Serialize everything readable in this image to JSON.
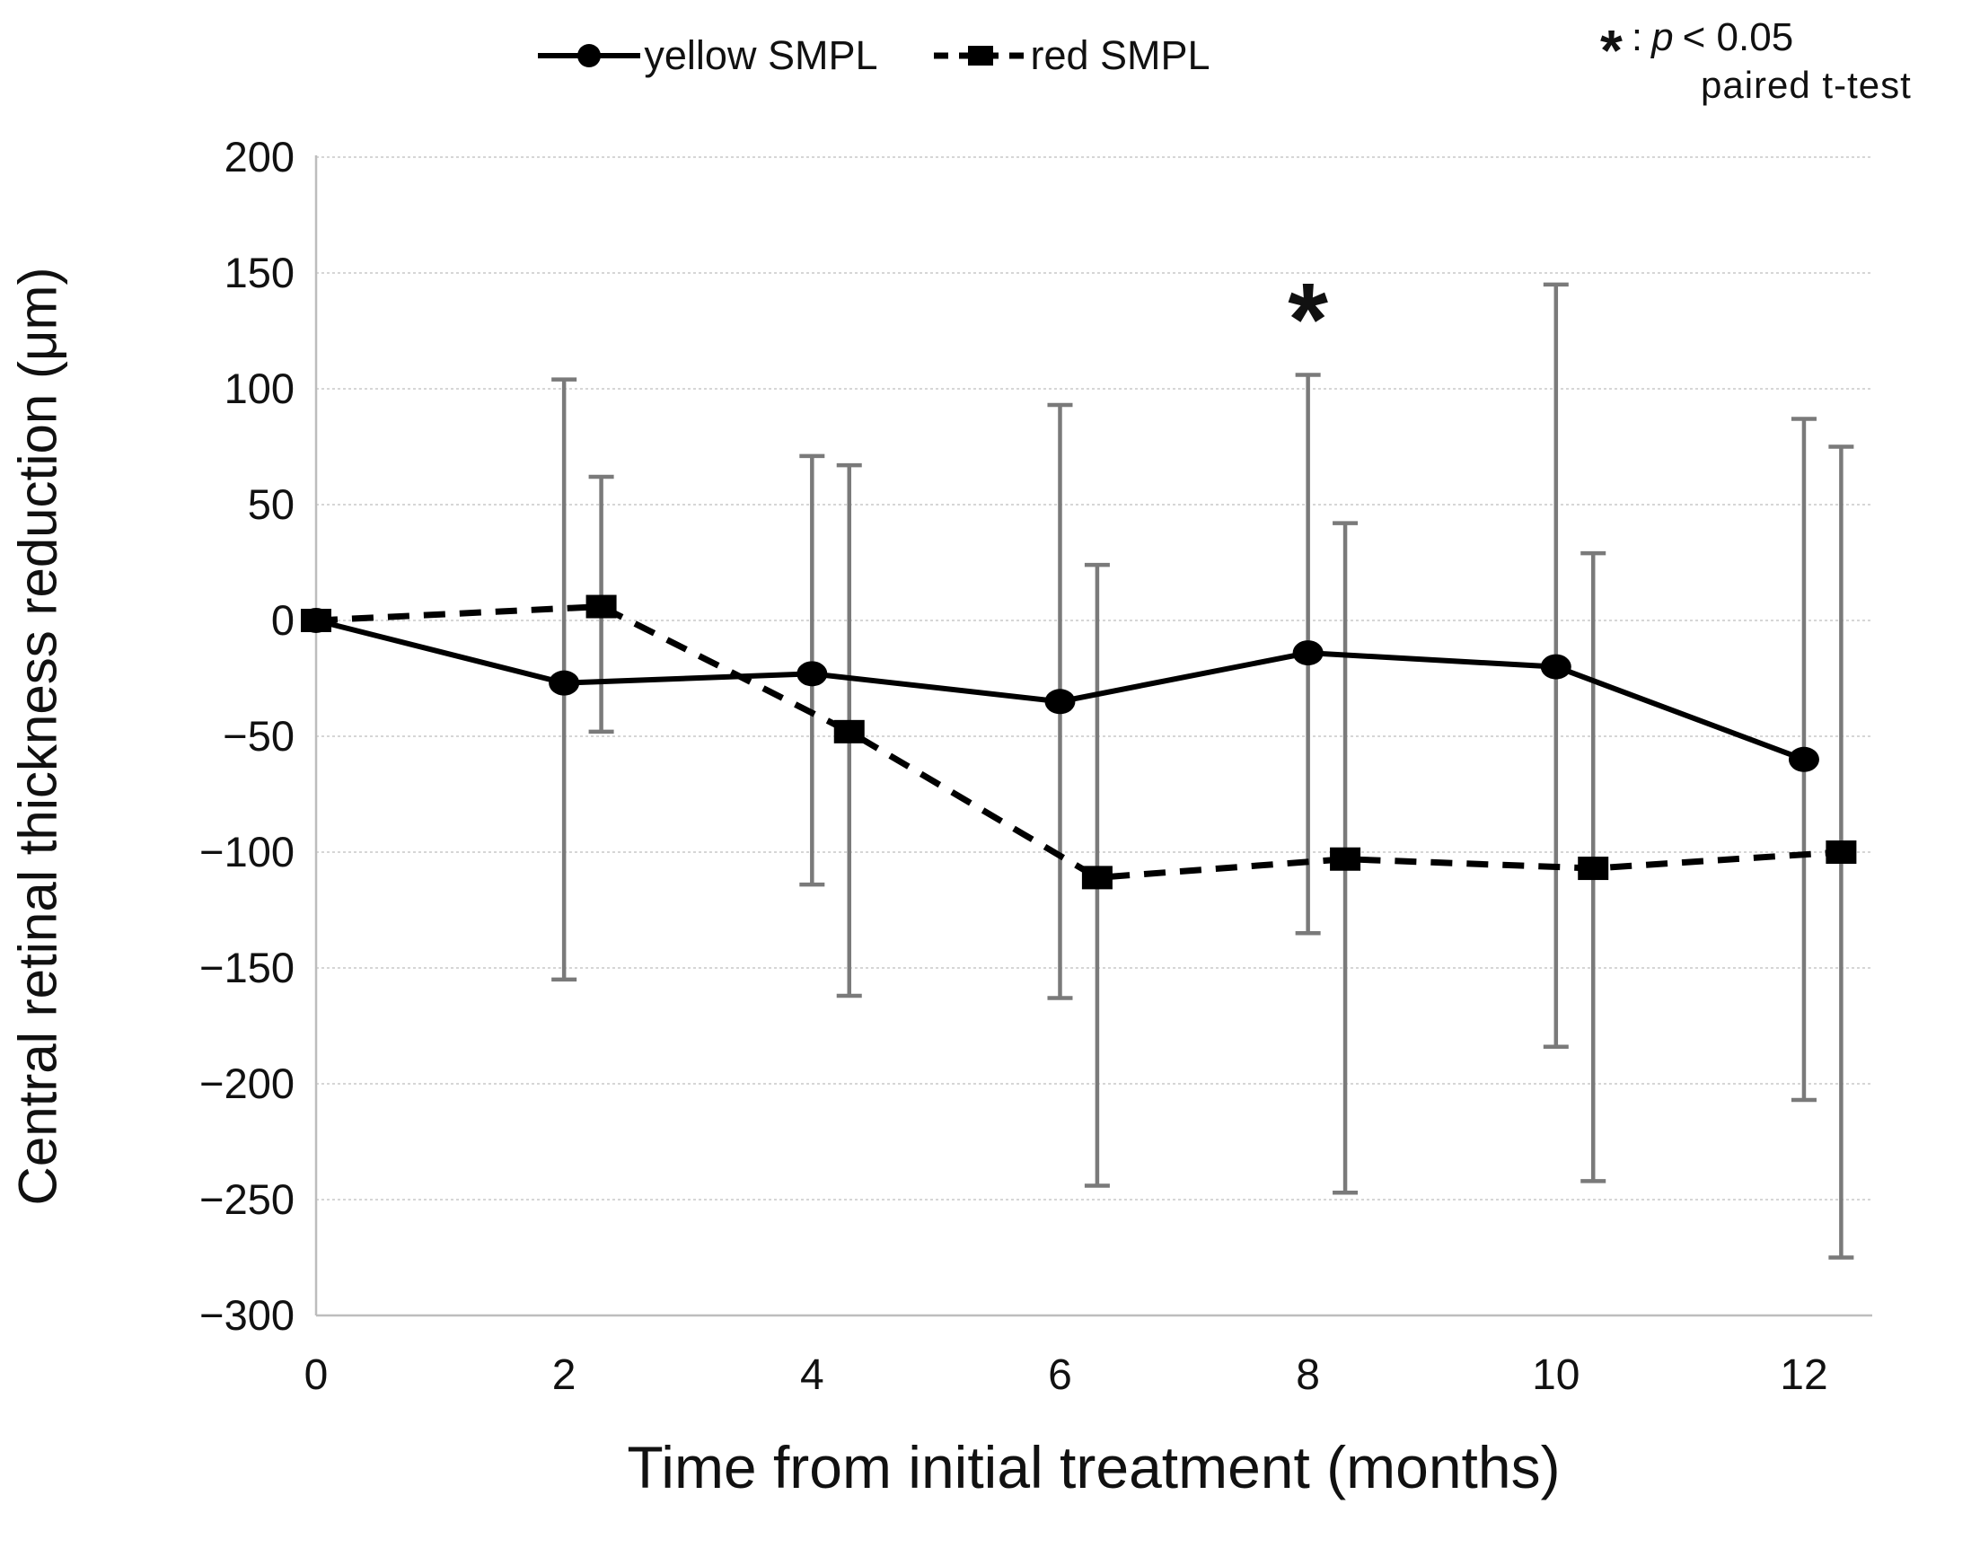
{
  "chart_data": {
    "type": "line",
    "title": "",
    "xlabel": "Time from initial treatment (months)",
    "ylabel": "Central retinal thickness reduction (μm)",
    "x_ticks": [
      0,
      2,
      4,
      6,
      8,
      10,
      12
    ],
    "y_ticks": [
      200,
      150,
      100,
      50,
      0,
      -50,
      -100,
      -150,
      -200,
      -250,
      -300
    ],
    "ylim": [
      -300,
      200
    ],
    "xlim": [
      0,
      12.55
    ],
    "grid": "horizontal-only",
    "legend_position": "top-center",
    "error_bar_color": "#7a7a7a",
    "line_color": "#000000",
    "series": [
      {
        "name": "yellow SMPL",
        "line_style": "solid",
        "marker": "circle",
        "x": [
          0,
          2,
          4,
          6,
          8,
          10,
          12
        ],
        "y": [
          0,
          -27,
          -23,
          -35,
          -14,
          -20,
          -60
        ],
        "err_hi": [
          null,
          104,
          71,
          93,
          106,
          145,
          87
        ],
        "err_lo": [
          null,
          -155,
          -114,
          -163,
          -135,
          -184,
          -207
        ]
      },
      {
        "name": "red SMPL",
        "line_style": "dashed",
        "marker": "square",
        "x": [
          0,
          2.3,
          4.3,
          6.3,
          8.3,
          10.3,
          12.3
        ],
        "y": [
          0,
          6,
          -48,
          -111,
          -103,
          -107,
          -100
        ],
        "err_hi": [
          null,
          62,
          67,
          24,
          42,
          29,
          75
        ],
        "err_lo": [
          null,
          -48,
          -162,
          -244,
          -247,
          -242,
          -275
        ]
      }
    ],
    "annotations": [
      {
        "text": "*",
        "x": 8,
        "y": 130
      }
    ]
  },
  "significance_note": {
    "star": "*",
    "separator": ":",
    "p_symbol": "p",
    "threshold": "< 0.05",
    "method": "paired  t-test"
  }
}
